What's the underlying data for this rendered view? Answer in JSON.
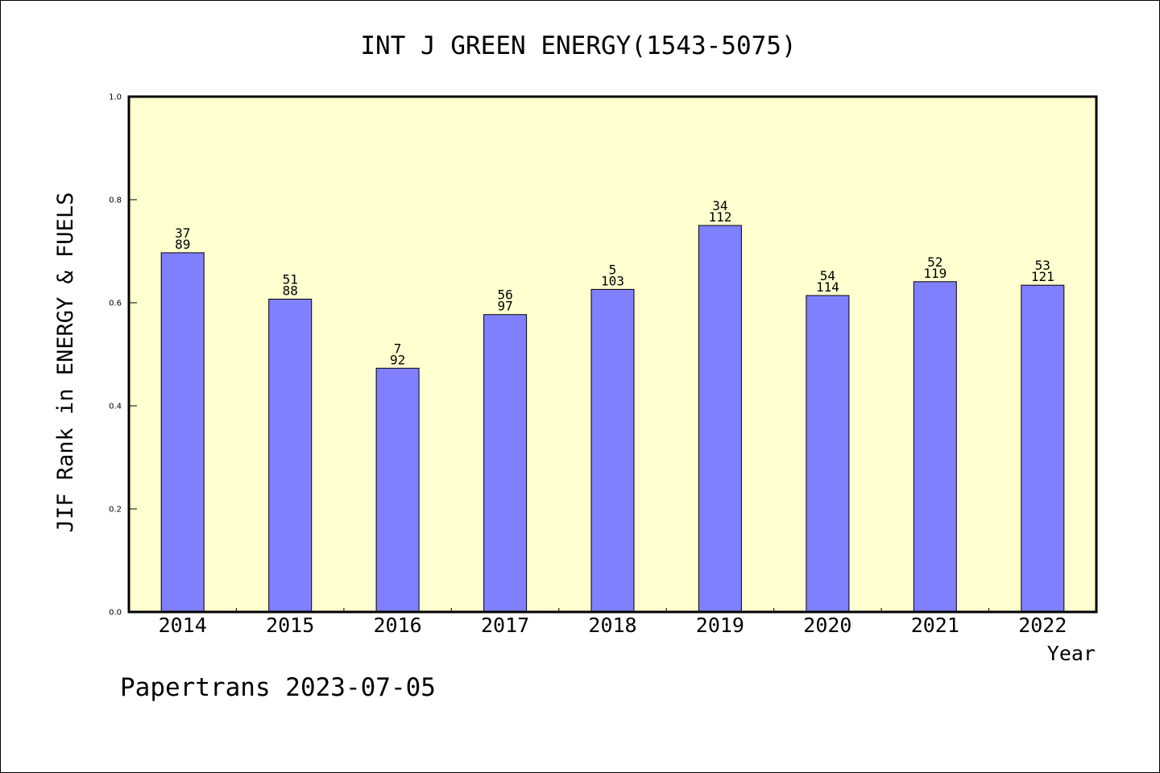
{
  "chart_data": {
    "type": "bar",
    "title": "INT J GREEN ENERGY(1543-5075)",
    "xlabel": "Year",
    "ylabel": "JIF Rank in ENERGY & FUELS",
    "ylim": [
      0,
      1.0
    ],
    "yticks": [
      "0.0",
      "0.2",
      "0.4",
      "0.6",
      "0.8",
      "1.0"
    ],
    "grid": false,
    "categories": [
      "2014",
      "2015",
      "2016",
      "2017",
      "2018",
      "2019",
      "2020",
      "2021",
      "2022"
    ],
    "values": [
      0.697,
      0.607,
      0.473,
      0.577,
      0.626,
      0.75,
      0.614,
      0.641,
      0.634
    ],
    "rank": [
      "37",
      "51",
      "7",
      "56",
      "5",
      "34",
      "54",
      "52",
      "53"
    ],
    "total": [
      "89",
      "88",
      "92",
      "97",
      "103",
      "112",
      "114",
      "119",
      "121"
    ],
    "colors": {
      "bar": "#8080ff",
      "plot_background": "#ffffd0",
      "axis": "#000000"
    }
  },
  "footer": "Papertrans 2023-07-05"
}
